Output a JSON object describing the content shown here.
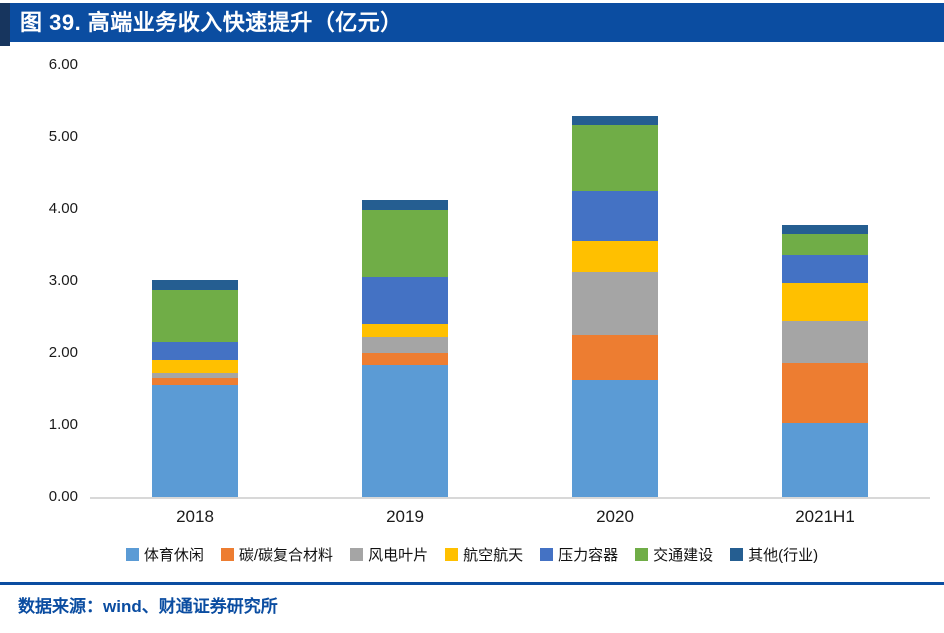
{
  "header": {
    "title": "图 39. 高端业务收入快速提升（亿元）"
  },
  "footer": {
    "source": "数据来源：wind、财通证券研究所"
  },
  "chart_data": {
    "type": "bar",
    "stacked": true,
    "title": "图 39. 高端业务收入快速提升（亿元）",
    "unit": "亿元",
    "categories": [
      "2018",
      "2019",
      "2020",
      "2021H1"
    ],
    "series": [
      {
        "name": "体育休闲",
        "color": "#5B9BD5",
        "values": [
          1.55,
          1.84,
          1.63,
          1.03
        ]
      },
      {
        "name": "碳/碳复合材料",
        "color": "#ED7D31",
        "values": [
          0.1,
          0.16,
          0.62,
          0.83
        ]
      },
      {
        "name": "风电叶片",
        "color": "#A5A5A5",
        "values": [
          0.07,
          0.22,
          0.87,
          0.58
        ]
      },
      {
        "name": "航空航天",
        "color": "#FFC000",
        "values": [
          0.18,
          0.19,
          0.44,
          0.53
        ]
      },
      {
        "name": "压力容器",
        "color": "#4472C4",
        "values": [
          0.25,
          0.65,
          0.69,
          0.39
        ]
      },
      {
        "name": "交通建设",
        "color": "#70AD47",
        "values": [
          0.73,
          0.92,
          0.92,
          0.29
        ]
      },
      {
        "name": "其他(行业)",
        "color": "#255E91",
        "values": [
          0.13,
          0.14,
          0.12,
          0.13
        ]
      }
    ],
    "ylim": [
      0,
      6
    ],
    "y_ticks": [
      "6.00",
      "5.00",
      "4.00",
      "3.00",
      "2.00",
      "1.00",
      "0.00"
    ],
    "grid": false,
    "legend_position": "bottom",
    "colors": {
      "title_bar": "#0B4DA1",
      "title_accent": "#17355E",
      "footer_text": "#0B4DA1",
      "axis_line": "#D8D8D8"
    }
  }
}
